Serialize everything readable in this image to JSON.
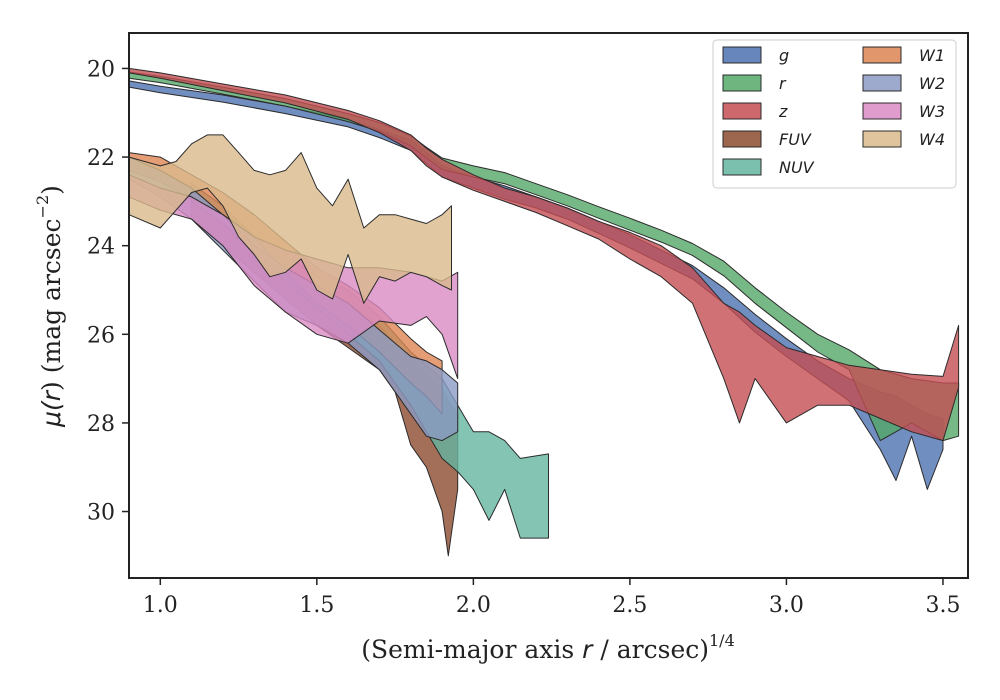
{
  "chart_data": {
    "type": "area",
    "xlabel": "(Semi-major axis r / arcsec)^{1/4}",
    "xlabel_parts": {
      "a": "(Semi-major axis ",
      "b": "r",
      "c": " / arcsec)",
      "sup": "1/4"
    },
    "ylabel": "μ(r) (mag arcsec^−2)",
    "ylabel_parts": {
      "a": "μ(",
      "b": "r",
      "c": ") (mag arcsec",
      "sup": "−2",
      "d": ")"
    },
    "xlim": [
      0.9,
      3.58
    ],
    "ylim": [
      31.5,
      19.2
    ],
    "y_inverted": true,
    "xticks": [
      1.0,
      1.5,
      2.0,
      2.5,
      3.0,
      3.5
    ],
    "xtick_labels": [
      "1.0",
      "1.5",
      "2.0",
      "2.5",
      "3.0",
      "3.5"
    ],
    "yticks": [
      20,
      22,
      24,
      26,
      28,
      30
    ],
    "ytick_labels": [
      "20",
      "22",
      "24",
      "26",
      "28",
      "30"
    ],
    "grid": false,
    "legend_position": "top-right",
    "legend_columns": 2,
    "series": [
      {
        "name": "g",
        "color": "#4c72b0",
        "points": [
          [
            0.9,
            20.28,
            20.42
          ],
          [
            1.0,
            20.4,
            20.55
          ],
          [
            1.2,
            20.6,
            20.76
          ],
          [
            1.4,
            20.85,
            21.02
          ],
          [
            1.6,
            21.15,
            21.32
          ],
          [
            1.7,
            21.38,
            21.56
          ],
          [
            1.8,
            21.62,
            21.85
          ],
          [
            1.85,
            21.9,
            22.15
          ],
          [
            1.9,
            22.2,
            22.45
          ],
          [
            2.0,
            22.45,
            22.7
          ],
          [
            2.1,
            22.65,
            22.95
          ],
          [
            2.2,
            22.9,
            23.15
          ],
          [
            2.3,
            23.15,
            23.4
          ],
          [
            2.4,
            23.45,
            23.72
          ],
          [
            2.5,
            23.75,
            24.05
          ],
          [
            2.6,
            24.1,
            24.4
          ],
          [
            2.7,
            24.45,
            24.75
          ],
          [
            2.8,
            24.95,
            25.3
          ],
          [
            2.9,
            25.55,
            25.95
          ],
          [
            3.0,
            26.1,
            26.5
          ],
          [
            3.1,
            26.6,
            27.0
          ],
          [
            3.2,
            27.0,
            27.5
          ],
          [
            3.3,
            27.3,
            28.6
          ],
          [
            3.35,
            27.4,
            29.3
          ],
          [
            3.4,
            27.6,
            28.3
          ],
          [
            3.45,
            27.8,
            29.5
          ],
          [
            3.5,
            27.9,
            28.6
          ]
        ]
      },
      {
        "name": "r",
        "color": "#55a868",
        "points": [
          [
            0.9,
            20.08,
            20.22
          ],
          [
            1.0,
            20.18,
            20.32
          ],
          [
            1.2,
            20.42,
            20.58
          ],
          [
            1.4,
            20.68,
            20.85
          ],
          [
            1.6,
            21.02,
            21.2
          ],
          [
            1.7,
            21.22,
            21.42
          ],
          [
            1.8,
            21.52,
            21.75
          ],
          [
            1.85,
            21.78,
            22.02
          ],
          [
            1.9,
            22.02,
            22.28
          ],
          [
            2.0,
            22.2,
            22.45
          ],
          [
            2.1,
            22.35,
            22.6
          ],
          [
            2.2,
            22.6,
            22.85
          ],
          [
            2.3,
            22.85,
            23.1
          ],
          [
            2.4,
            23.12,
            23.38
          ],
          [
            2.5,
            23.38,
            23.65
          ],
          [
            2.6,
            23.65,
            23.92
          ],
          [
            2.7,
            23.95,
            24.22
          ],
          [
            2.8,
            24.35,
            24.68
          ],
          [
            2.9,
            24.95,
            25.3
          ],
          [
            3.0,
            25.5,
            25.85
          ],
          [
            3.1,
            26.0,
            26.4
          ],
          [
            3.2,
            26.35,
            26.8
          ],
          [
            3.3,
            26.8,
            28.4
          ],
          [
            3.4,
            27.0,
            28.0
          ],
          [
            3.5,
            27.1,
            28.4
          ],
          [
            3.55,
            27.1,
            28.3
          ]
        ]
      },
      {
        "name": "z",
        "color": "#c44e52",
        "points": [
          [
            0.9,
            20.0,
            20.1
          ],
          [
            1.0,
            20.1,
            20.22
          ],
          [
            1.2,
            20.35,
            20.5
          ],
          [
            1.4,
            20.6,
            20.78
          ],
          [
            1.6,
            20.95,
            21.15
          ],
          [
            1.7,
            21.18,
            21.45
          ],
          [
            1.8,
            21.5,
            21.85
          ],
          [
            1.85,
            21.8,
            22.2
          ],
          [
            1.9,
            22.05,
            22.45
          ],
          [
            2.0,
            22.4,
            22.75
          ],
          [
            2.1,
            22.7,
            23.0
          ],
          [
            2.2,
            22.9,
            23.25
          ],
          [
            2.3,
            23.15,
            23.55
          ],
          [
            2.4,
            23.45,
            23.85
          ],
          [
            2.5,
            23.7,
            24.3
          ],
          [
            2.6,
            24.0,
            24.7
          ],
          [
            2.7,
            24.5,
            25.3
          ],
          [
            2.8,
            25.3,
            27.0
          ],
          [
            2.85,
            25.5,
            28.0
          ],
          [
            2.9,
            25.8,
            27.0
          ],
          [
            3.0,
            26.3,
            28.0
          ],
          [
            3.1,
            26.5,
            27.6
          ],
          [
            3.2,
            26.7,
            27.6
          ],
          [
            3.3,
            26.8,
            27.9
          ],
          [
            3.4,
            26.9,
            28.2
          ],
          [
            3.5,
            26.95,
            28.4
          ],
          [
            3.55,
            25.8,
            27.2
          ]
        ]
      },
      {
        "name": "FUV",
        "color": "#8c4b2f",
        "points": [
          [
            1.1,
            23.0,
            23.4
          ],
          [
            1.2,
            23.5,
            24.0
          ],
          [
            1.3,
            24.1,
            24.6
          ],
          [
            1.4,
            24.6,
            25.2
          ],
          [
            1.5,
            25.0,
            25.8
          ],
          [
            1.6,
            25.3,
            26.3
          ],
          [
            1.7,
            25.8,
            26.8
          ],
          [
            1.75,
            26.2,
            27.3
          ],
          [
            1.8,
            26.6,
            28.5
          ],
          [
            1.85,
            27.0,
            29.0
          ],
          [
            1.9,
            27.2,
            30.0
          ],
          [
            1.92,
            27.5,
            31.0
          ],
          [
            1.95,
            27.8,
            29.5
          ]
        ]
      },
      {
        "name": "NUV",
        "color": "#64b5a0",
        "points": [
          [
            1.1,
            22.6,
            23.0
          ],
          [
            1.2,
            23.1,
            23.5
          ],
          [
            1.3,
            23.8,
            24.2
          ],
          [
            1.4,
            24.2,
            24.8
          ],
          [
            1.5,
            24.7,
            25.4
          ],
          [
            1.6,
            25.0,
            26.0
          ],
          [
            1.7,
            25.6,
            26.6
          ],
          [
            1.8,
            26.4,
            27.6
          ],
          [
            1.9,
            27.0,
            28.8
          ],
          [
            1.95,
            27.6,
            29.1
          ],
          [
            2.0,
            28.2,
            29.5
          ],
          [
            2.05,
            28.2,
            30.2
          ],
          [
            2.1,
            28.4,
            29.5
          ],
          [
            2.15,
            28.8,
            30.6
          ],
          [
            2.24,
            28.7,
            30.6
          ]
        ]
      },
      {
        "name": "W1",
        "color": "#dd8452",
        "points": [
          [
            0.9,
            21.9,
            22.3
          ],
          [
            1.0,
            22.0,
            22.55
          ],
          [
            1.1,
            22.4,
            22.95
          ],
          [
            1.2,
            22.8,
            23.3
          ],
          [
            1.3,
            23.3,
            23.8
          ],
          [
            1.4,
            23.9,
            24.6
          ],
          [
            1.5,
            24.5,
            25.3
          ],
          [
            1.6,
            24.9,
            25.8
          ],
          [
            1.7,
            25.4,
            26.4
          ],
          [
            1.8,
            26.1,
            27.1
          ],
          [
            1.85,
            26.4,
            27.4
          ],
          [
            1.9,
            26.6,
            27.8
          ]
        ]
      },
      {
        "name": "W2",
        "color": "#8c9bc4",
        "points": [
          [
            0.9,
            22.0,
            22.5
          ],
          [
            1.0,
            22.3,
            22.9
          ],
          [
            1.1,
            22.7,
            23.4
          ],
          [
            1.2,
            23.3,
            24.1
          ],
          [
            1.3,
            24.0,
            24.8
          ],
          [
            1.4,
            24.5,
            25.5
          ],
          [
            1.5,
            24.9,
            25.8
          ],
          [
            1.6,
            25.3,
            26.2
          ],
          [
            1.7,
            25.9,
            26.8
          ],
          [
            1.8,
            26.5,
            27.8
          ],
          [
            1.85,
            26.6,
            28.3
          ],
          [
            1.9,
            26.8,
            28.4
          ],
          [
            1.95,
            27.1,
            28.2
          ]
        ]
      },
      {
        "name": "W3",
        "color": "#da8bc3",
        "points": [
          [
            0.9,
            22.4,
            22.9
          ],
          [
            1.0,
            22.7,
            23.2
          ],
          [
            1.1,
            22.9,
            23.4
          ],
          [
            1.2,
            23.3,
            24.0
          ],
          [
            1.3,
            23.8,
            24.9
          ],
          [
            1.4,
            24.1,
            25.5
          ],
          [
            1.5,
            24.3,
            26.0
          ],
          [
            1.6,
            24.5,
            26.2
          ],
          [
            1.7,
            24.5,
            25.7
          ],
          [
            1.8,
            24.6,
            25.8
          ],
          [
            1.85,
            24.7,
            25.6
          ],
          [
            1.9,
            24.8,
            26.0
          ],
          [
            1.95,
            24.6,
            27.0
          ]
        ]
      },
      {
        "name": "W4",
        "color": "#d9ba8c",
        "points": [
          [
            0.9,
            22.0,
            23.3
          ],
          [
            1.0,
            22.2,
            23.6
          ],
          [
            1.05,
            22.1,
            23.2
          ],
          [
            1.1,
            21.7,
            22.8
          ],
          [
            1.15,
            21.5,
            22.7
          ],
          [
            1.2,
            21.5,
            23.1
          ],
          [
            1.25,
            21.9,
            23.8
          ],
          [
            1.3,
            22.3,
            24.2
          ],
          [
            1.35,
            22.4,
            24.7
          ],
          [
            1.4,
            22.3,
            24.6
          ],
          [
            1.45,
            21.9,
            24.3
          ],
          [
            1.5,
            22.7,
            25.0
          ],
          [
            1.55,
            23.1,
            25.2
          ],
          [
            1.6,
            22.5,
            24.2
          ],
          [
            1.65,
            23.6,
            25.3
          ],
          [
            1.7,
            23.3,
            24.7
          ],
          [
            1.75,
            23.3,
            24.8
          ],
          [
            1.8,
            23.4,
            24.6
          ],
          [
            1.85,
            23.5,
            24.7
          ],
          [
            1.9,
            23.3,
            24.9
          ],
          [
            1.93,
            23.1,
            25.0
          ]
        ]
      }
    ]
  }
}
